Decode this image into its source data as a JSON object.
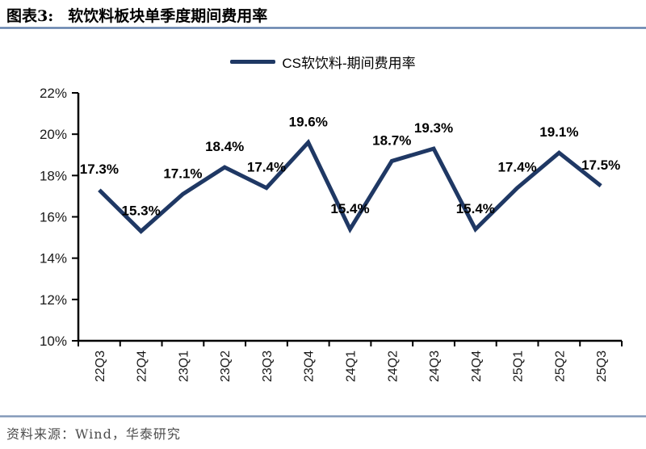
{
  "header": {
    "title_prefix": "图表3:",
    "title": "软饮料板块单季度期间费用率"
  },
  "legend": {
    "label": "CS软饮料-期间费用率"
  },
  "footer": {
    "source": "资料来源：Wind，华泰研究"
  },
  "colors": {
    "line": "#1F3864",
    "axis": "#000000",
    "tick_label": "#1a1a1a",
    "data_label": "#000000",
    "rule": "#5b7aa8",
    "source_text": "#4d4d4d"
  },
  "chart_data": {
    "type": "line",
    "title": "软饮料板块单季度期间费用率",
    "categories": [
      "22Q3",
      "22Q4",
      "23Q1",
      "23Q2",
      "23Q3",
      "23Q4",
      "24Q1",
      "24Q2",
      "24Q3",
      "24Q4",
      "25Q1",
      "25Q2",
      "25Q3"
    ],
    "series": [
      {
        "name": "CS软饮料-期间费用率",
        "values": [
          17.3,
          15.3,
          17.1,
          18.4,
          17.4,
          19.6,
          15.4,
          18.7,
          19.3,
          15.4,
          17.4,
          19.1,
          17.5
        ]
      }
    ],
    "data_labels": [
      "17.3%",
      "15.3%",
      "17.1%",
      "18.4%",
      "17.4%",
      "19.6%",
      "15.4%",
      "18.7%",
      "19.3%",
      "15.4%",
      "17.4%",
      "19.1%",
      "17.5%"
    ],
    "ylim": [
      10,
      22
    ],
    "ytick_step": 2,
    "yticks": [
      "22%",
      "20%",
      "18%",
      "16%",
      "14%",
      "12%",
      "10%"
    ],
    "xlabel": "",
    "ylabel": "",
    "grid": false,
    "legend_position": "top",
    "x_tick_mode": "between"
  }
}
